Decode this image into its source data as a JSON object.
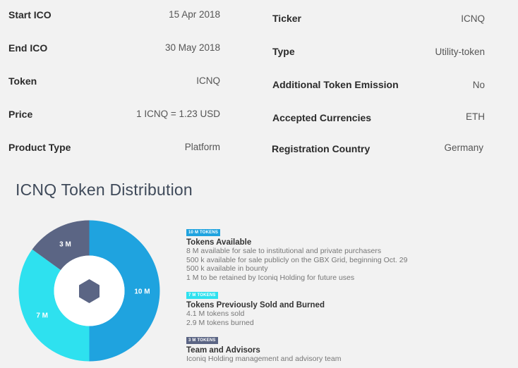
{
  "details_left": [
    {
      "label": "Start ICO",
      "value": "15 Apr 2018"
    },
    {
      "label": "End ICO",
      "value": "30 May 2018"
    },
    {
      "label": "Token",
      "value": "ICNQ"
    },
    {
      "label": "Price",
      "value": "1 ICNQ = 1.23 USD"
    },
    {
      "label": "Product Type",
      "value": "Platform"
    }
  ],
  "details_right": [
    {
      "label": "Ticker",
      "value": "ICNQ"
    },
    {
      "label": "Type",
      "value": "Utility-token"
    },
    {
      "label": "Additional Token Emission",
      "value": "No"
    },
    {
      "label": "Accepted Currencies",
      "value": "ETH"
    },
    {
      "label": "Registration Country",
      "value": "Germany"
    }
  ],
  "distribution_title": "ICNQ Token Distribution",
  "donut": {
    "center_icon": "hexagon-logo-icon",
    "segments": [
      {
        "label": "10 M",
        "value": 10,
        "color": "#1fa3df"
      },
      {
        "label": "7 M",
        "value": 7,
        "color": "#2ee1ef"
      },
      {
        "label": "3 M",
        "value": 3,
        "color": "#5b6584"
      }
    ]
  },
  "legend": [
    {
      "badge": "10 M TOKENS",
      "badge_color": "#1fa3df",
      "title": "Tokens Available",
      "lines": [
        "8 M available for sale to institutional and private purchasers",
        "500 k available for sale publicly on the GBX Grid, beginning Oct. 29",
        "500 k available in bounty",
        "1 M to be retained by Iconiq Holding for future uses"
      ]
    },
    {
      "badge": "7 M TOKENS",
      "badge_color": "#2ee1ef",
      "title": "Tokens Previously Sold and Burned",
      "lines": [
        "4.1 M tokens sold",
        "2.9 M tokens burned"
      ]
    },
    {
      "badge": "3 M TOKENS",
      "badge_color": "#5b6584",
      "title": "Team and Advisors",
      "lines": [
        "Iconiq Holding management and advisory team"
      ]
    }
  ]
}
